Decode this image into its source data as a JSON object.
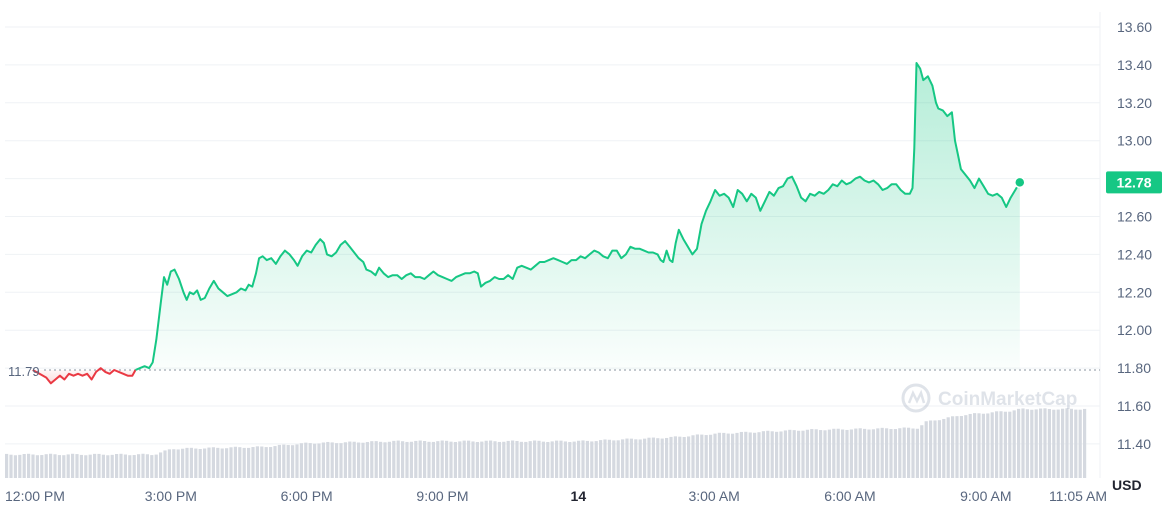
{
  "chart_data": {
    "type": "area",
    "baseline": 11.79,
    "baseline_label": "11.79",
    "current_value": 12.78,
    "current_label": "12.78",
    "unit": "USD",
    "watermark": "CoinMarketCap",
    "ylim": [
      11.22,
      13.7
    ],
    "y_ticks": [
      "13.60",
      "13.40",
      "13.20",
      "13.00",
      "12.80",
      "12.60",
      "12.40",
      "12.20",
      "12.00",
      "11.80",
      "11.60",
      "11.40"
    ],
    "x_ticks": [
      {
        "label": "12:00 PM",
        "t": 0,
        "bold": false
      },
      {
        "label": "3:00 PM",
        "t": 3,
        "bold": false
      },
      {
        "label": "6:00 PM",
        "t": 6,
        "bold": false
      },
      {
        "label": "9:00 PM",
        "t": 9,
        "bold": false
      },
      {
        "label": "14",
        "t": 12,
        "bold": true
      },
      {
        "label": "3:00 AM",
        "t": 15,
        "bold": false
      },
      {
        "label": "6:00 AM",
        "t": 18,
        "bold": false
      },
      {
        "label": "9:00 AM",
        "t": 21,
        "bold": false
      },
      {
        "label": "11:05 AM",
        "t": 23.08,
        "bold": false
      }
    ],
    "x_range_hours": [
      0,
      23.08
    ],
    "colors": {
      "up": "#16c784",
      "down": "#ea3943",
      "grid": "#eff2f5",
      "volume": "#d5d9e0",
      "label_bg": "#16c784"
    },
    "price_series": [
      [
        -0.05,
        11.79
      ],
      [
        0.1,
        11.77
      ],
      [
        0.25,
        11.75
      ],
      [
        0.35,
        11.72
      ],
      [
        0.45,
        11.74
      ],
      [
        0.55,
        11.76
      ],
      [
        0.65,
        11.74
      ],
      [
        0.75,
        11.77
      ],
      [
        0.85,
        11.76
      ],
      [
        0.95,
        11.77
      ],
      [
        1.05,
        11.76
      ],
      [
        1.15,
        11.77
      ],
      [
        1.25,
        11.74
      ],
      [
        1.35,
        11.78
      ],
      [
        1.45,
        11.8
      ],
      [
        1.55,
        11.78
      ],
      [
        1.65,
        11.77
      ],
      [
        1.75,
        11.79
      ],
      [
        1.85,
        11.78
      ],
      [
        1.95,
        11.77
      ],
      [
        2.05,
        11.76
      ],
      [
        2.15,
        11.76
      ],
      [
        2.22,
        11.79
      ],
      [
        2.32,
        11.8
      ],
      [
        2.42,
        11.81
      ],
      [
        2.52,
        11.8
      ],
      [
        2.6,
        11.83
      ],
      [
        2.68,
        11.95
      ],
      [
        2.78,
        12.15
      ],
      [
        2.85,
        12.28
      ],
      [
        2.92,
        12.24
      ],
      [
        3.0,
        12.31
      ],
      [
        3.08,
        12.32
      ],
      [
        3.18,
        12.27
      ],
      [
        3.28,
        12.2
      ],
      [
        3.35,
        12.16
      ],
      [
        3.42,
        12.2
      ],
      [
        3.5,
        12.19
      ],
      [
        3.58,
        12.21
      ],
      [
        3.66,
        12.16
      ],
      [
        3.75,
        12.17
      ],
      [
        3.85,
        12.22
      ],
      [
        3.95,
        12.26
      ],
      [
        4.05,
        12.22
      ],
      [
        4.15,
        12.2
      ],
      [
        4.25,
        12.18
      ],
      [
        4.35,
        12.19
      ],
      [
        4.45,
        12.2
      ],
      [
        4.55,
        12.22
      ],
      [
        4.65,
        12.21
      ],
      [
        4.72,
        12.24
      ],
      [
        4.8,
        12.23
      ],
      [
        4.88,
        12.3
      ],
      [
        4.95,
        12.38
      ],
      [
        5.03,
        12.39
      ],
      [
        5.12,
        12.37
      ],
      [
        5.22,
        12.38
      ],
      [
        5.32,
        12.35
      ],
      [
        5.42,
        12.39
      ],
      [
        5.52,
        12.42
      ],
      [
        5.62,
        12.4
      ],
      [
        5.72,
        12.37
      ],
      [
        5.8,
        12.34
      ],
      [
        5.9,
        12.39
      ],
      [
        6.0,
        12.42
      ],
      [
        6.1,
        12.41
      ],
      [
        6.2,
        12.45
      ],
      [
        6.3,
        12.48
      ],
      [
        6.38,
        12.46
      ],
      [
        6.45,
        12.4
      ],
      [
        6.55,
        12.39
      ],
      [
        6.65,
        12.41
      ],
      [
        6.75,
        12.45
      ],
      [
        6.85,
        12.47
      ],
      [
        6.95,
        12.44
      ],
      [
        7.05,
        12.41
      ],
      [
        7.15,
        12.38
      ],
      [
        7.25,
        12.36
      ],
      [
        7.32,
        12.32
      ],
      [
        7.42,
        12.31
      ],
      [
        7.52,
        12.29
      ],
      [
        7.6,
        12.33
      ],
      [
        7.7,
        12.3
      ],
      [
        7.8,
        12.28
      ],
      [
        7.9,
        12.29
      ],
      [
        8.0,
        12.29
      ],
      [
        8.1,
        12.27
      ],
      [
        8.2,
        12.29
      ],
      [
        8.3,
        12.3
      ],
      [
        8.4,
        12.28
      ],
      [
        8.5,
        12.28
      ],
      [
        8.6,
        12.27
      ],
      [
        8.7,
        12.29
      ],
      [
        8.8,
        12.31
      ],
      [
        8.9,
        12.29
      ],
      [
        9.0,
        12.28
      ],
      [
        9.1,
        12.27
      ],
      [
        9.2,
        12.26
      ],
      [
        9.3,
        12.28
      ],
      [
        9.4,
        12.29
      ],
      [
        9.5,
        12.3
      ],
      [
        9.6,
        12.3
      ],
      [
        9.7,
        12.31
      ],
      [
        9.78,
        12.3
      ],
      [
        9.85,
        12.23
      ],
      [
        9.95,
        12.25
      ],
      [
        10.05,
        12.26
      ],
      [
        10.15,
        12.28
      ],
      [
        10.25,
        12.27
      ],
      [
        10.35,
        12.27
      ],
      [
        10.45,
        12.29
      ],
      [
        10.55,
        12.27
      ],
      [
        10.65,
        12.33
      ],
      [
        10.75,
        12.34
      ],
      [
        10.85,
        12.33
      ],
      [
        10.95,
        12.32
      ],
      [
        11.05,
        12.34
      ],
      [
        11.15,
        12.36
      ],
      [
        11.25,
        12.36
      ],
      [
        11.35,
        12.37
      ],
      [
        11.45,
        12.38
      ],
      [
        11.55,
        12.37
      ],
      [
        11.65,
        12.36
      ],
      [
        11.75,
        12.35
      ],
      [
        11.85,
        12.37
      ],
      [
        11.95,
        12.37
      ],
      [
        12.05,
        12.39
      ],
      [
        12.15,
        12.38
      ],
      [
        12.25,
        12.4
      ],
      [
        12.35,
        12.42
      ],
      [
        12.45,
        12.41
      ],
      [
        12.55,
        12.39
      ],
      [
        12.65,
        12.38
      ],
      [
        12.75,
        12.42
      ],
      [
        12.85,
        12.42
      ],
      [
        12.95,
        12.38
      ],
      [
        13.05,
        12.4
      ],
      [
        13.15,
        12.44
      ],
      [
        13.25,
        12.43
      ],
      [
        13.35,
        12.43
      ],
      [
        13.45,
        12.42
      ],
      [
        13.55,
        12.41
      ],
      [
        13.65,
        12.41
      ],
      [
        13.75,
        12.4
      ],
      [
        13.82,
        12.37
      ],
      [
        13.88,
        12.36
      ],
      [
        13.95,
        12.42
      ],
      [
        14.02,
        12.37
      ],
      [
        14.08,
        12.36
      ],
      [
        14.15,
        12.46
      ],
      [
        14.22,
        12.53
      ],
      [
        14.32,
        12.48
      ],
      [
        14.42,
        12.44
      ],
      [
        14.52,
        12.4
      ],
      [
        14.62,
        12.43
      ],
      [
        14.72,
        12.56
      ],
      [
        14.82,
        12.63
      ],
      [
        14.92,
        12.68
      ],
      [
        15.02,
        12.74
      ],
      [
        15.12,
        12.71
      ],
      [
        15.22,
        12.72
      ],
      [
        15.32,
        12.7
      ],
      [
        15.42,
        12.65
      ],
      [
        15.52,
        12.74
      ],
      [
        15.62,
        12.72
      ],
      [
        15.72,
        12.68
      ],
      [
        15.82,
        12.72
      ],
      [
        15.92,
        12.7
      ],
      [
        16.02,
        12.63
      ],
      [
        16.12,
        12.68
      ],
      [
        16.22,
        12.73
      ],
      [
        16.32,
        12.71
      ],
      [
        16.42,
        12.75
      ],
      [
        16.52,
        12.76
      ],
      [
        16.62,
        12.8
      ],
      [
        16.72,
        12.81
      ],
      [
        16.82,
        12.76
      ],
      [
        16.92,
        12.7
      ],
      [
        17.02,
        12.68
      ],
      [
        17.12,
        12.72
      ],
      [
        17.22,
        12.71
      ],
      [
        17.32,
        12.73
      ],
      [
        17.42,
        12.72
      ],
      [
        17.52,
        12.74
      ],
      [
        17.62,
        12.77
      ],
      [
        17.72,
        12.76
      ],
      [
        17.82,
        12.79
      ],
      [
        17.92,
        12.77
      ],
      [
        18.02,
        12.78
      ],
      [
        18.12,
        12.8
      ],
      [
        18.22,
        12.81
      ],
      [
        18.32,
        12.79
      ],
      [
        18.42,
        12.78
      ],
      [
        18.52,
        12.79
      ],
      [
        18.62,
        12.77
      ],
      [
        18.72,
        12.74
      ],
      [
        18.82,
        12.75
      ],
      [
        18.92,
        12.77
      ],
      [
        19.02,
        12.77
      ],
      [
        19.12,
        12.74
      ],
      [
        19.22,
        12.72
      ],
      [
        19.32,
        12.72
      ],
      [
        19.38,
        12.75
      ],
      [
        19.42,
        12.96
      ],
      [
        19.47,
        13.41
      ],
      [
        19.55,
        13.38
      ],
      [
        19.62,
        13.32
      ],
      [
        19.72,
        13.34
      ],
      [
        19.82,
        13.29
      ],
      [
        19.9,
        13.2
      ],
      [
        19.95,
        13.17
      ],
      [
        20.05,
        13.16
      ],
      [
        20.15,
        13.13
      ],
      [
        20.25,
        13.15
      ],
      [
        20.32,
        13.0
      ],
      [
        20.38,
        12.93
      ],
      [
        20.45,
        12.85
      ],
      [
        20.55,
        12.82
      ],
      [
        20.65,
        12.79
      ],
      [
        20.75,
        12.75
      ],
      [
        20.85,
        12.8
      ],
      [
        20.95,
        12.76
      ],
      [
        21.05,
        12.72
      ],
      [
        21.15,
        12.71
      ],
      [
        21.25,
        12.72
      ],
      [
        21.35,
        12.7
      ],
      [
        21.45,
        12.65
      ],
      [
        21.55,
        12.7
      ],
      [
        21.65,
        12.74
      ],
      [
        21.75,
        12.78
      ]
    ],
    "volume_levels": [
      [
        0,
        11.34
      ],
      [
        2.6,
        11.34
      ],
      [
        3.0,
        11.37
      ],
      [
        5.0,
        11.38
      ],
      [
        6.0,
        11.4
      ],
      [
        8.0,
        11.41
      ],
      [
        12.0,
        11.41
      ],
      [
        14.0,
        11.43
      ],
      [
        15.0,
        11.45
      ],
      [
        17.0,
        11.47
      ],
      [
        19.5,
        11.48
      ],
      [
        19.6,
        11.51
      ],
      [
        20.5,
        11.55
      ],
      [
        21.5,
        11.57
      ],
      [
        21.75,
        11.58
      ]
    ]
  }
}
